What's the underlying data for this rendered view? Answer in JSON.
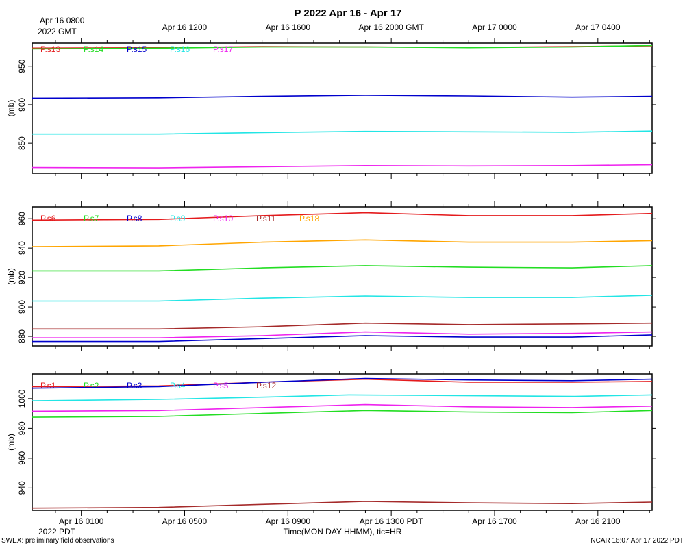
{
  "title": "P 2022 Apr 16 - Apr 17",
  "top_axis": {
    "first_label_line1": "Apr 16 0800",
    "first_label_line2": "2022 GMT",
    "labels": [
      "Apr 16 1200",
      "Apr 16 1600",
      "Apr 16 2000 GMT",
      "Apr 17 0000",
      "Apr 17 0400"
    ]
  },
  "bottom_axis": {
    "labels": [
      "Apr 16 0100",
      "Apr 16 0500",
      "Apr 16 0900",
      "Apr 16 1300 PDT",
      "Apr 16 1700",
      "Apr 16 2100"
    ],
    "year_label": "2022 PDT",
    "xlabel": "Time(MON DAY HHMM), tic=HR"
  },
  "footer": {
    "left": "SWEX: preliminary field observations",
    "right": "NCAR 16:07 Apr 17 2022 PDT"
  },
  "chart_data": [
    {
      "type": "line",
      "ylabel": "(mb)",
      "ylim": [
        811,
        980
      ],
      "yticks": [
        850,
        900,
        950
      ],
      "xlim_hours_pdt": [
        -0.9,
        23.1
      ],
      "series": [
        {
          "name": "P.s13",
          "color": "#e41a1c",
          "x": [
            -0.9,
            4,
            8,
            12,
            16,
            20,
            23.1
          ],
          "values": [
            973.5,
            974,
            975.5,
            975,
            974.5,
            975.5,
            976.5
          ]
        },
        {
          "name": "P.s14",
          "color": "#22dd22",
          "x": [
            -0.9,
            4,
            8,
            12,
            16,
            20,
            23.1
          ],
          "values": [
            972.5,
            973.5,
            975,
            975,
            974,
            975,
            977
          ]
        },
        {
          "name": "P.s15",
          "color": "#0000cc",
          "x": [
            -0.9,
            4,
            8,
            12,
            16,
            20,
            23.1
          ],
          "values": [
            908.5,
            909,
            911,
            912.5,
            911.5,
            910,
            911
          ]
        },
        {
          "name": "P.s16",
          "color": "#22e5e5",
          "x": [
            -0.9,
            4,
            8,
            12,
            16,
            20,
            23.1
          ],
          "values": [
            862,
            862,
            864,
            865.5,
            865,
            864.5,
            866
          ]
        },
        {
          "name": "P.s17",
          "color": "#ee22ee",
          "x": [
            -0.9,
            4,
            8,
            12,
            16,
            20,
            23.1
          ],
          "values": [
            818.5,
            818,
            819.5,
            821,
            820.5,
            821,
            822
          ]
        }
      ]
    },
    {
      "type": "line",
      "ylabel": "(mb)",
      "ylim": [
        873.5,
        968
      ],
      "yticks": [
        880,
        900,
        920,
        940,
        960
      ],
      "xlim_hours_pdt": [
        -0.9,
        23.1
      ],
      "series": [
        {
          "name": "P.s6",
          "color": "#e41a1c",
          "x": [
            -0.9,
            4,
            8,
            12,
            16,
            20,
            23.1
          ],
          "values": [
            959,
            959.5,
            962,
            964,
            962,
            962,
            963.5
          ]
        },
        {
          "name": "P.s7",
          "color": "#22dd22",
          "x": [
            -0.9,
            4,
            8,
            12,
            16,
            20,
            23.1
          ],
          "values": [
            924.5,
            924.5,
            926.5,
            928,
            927,
            926.5,
            928
          ]
        },
        {
          "name": "P.s8",
          "color": "#0000cc",
          "x": [
            -0.9,
            4,
            8,
            12,
            16,
            20,
            23.1
          ],
          "values": [
            876.5,
            876.5,
            878.5,
            880.5,
            879.5,
            879.5,
            881
          ]
        },
        {
          "name": "P.s9",
          "color": "#22e5e5",
          "x": [
            -0.9,
            4,
            8,
            12,
            16,
            20,
            23.1
          ],
          "values": [
            904,
            904,
            906,
            907.5,
            906.5,
            906.5,
            908
          ]
        },
        {
          "name": "P.s10",
          "color": "#ee22ee",
          "x": [
            -0.9,
            4,
            8,
            12,
            16,
            20,
            23.1
          ],
          "values": [
            879,
            879,
            880.5,
            883,
            881.5,
            882,
            883
          ]
        },
        {
          "name": "P.s11",
          "color": "#a52a2a",
          "x": [
            -0.9,
            4,
            8,
            12,
            16,
            20,
            23.1
          ],
          "values": [
            885,
            885,
            886.5,
            889,
            888,
            888.5,
            889
          ]
        },
        {
          "name": "P.s18",
          "color": "#ffa500",
          "x": [
            -0.9,
            4,
            8,
            12,
            16,
            20,
            23.1
          ],
          "values": [
            941,
            941.5,
            944,
            945.5,
            944,
            944,
            945
          ]
        }
      ]
    },
    {
      "type": "line",
      "ylabel": "(mb)",
      "ylim": [
        925,
        1016.5
      ],
      "yticks": [
        940,
        960,
        980,
        1000
      ],
      "xlim_hours_pdt": [
        -0.9,
        23.1
      ],
      "series": [
        {
          "name": "P.s1",
          "color": "#e41a1c",
          "x": [
            -0.9,
            4,
            8,
            12,
            16,
            20,
            23.1
          ],
          "values": [
            1008,
            1008.5,
            1011,
            1013,
            1011,
            1011,
            1011.5
          ]
        },
        {
          "name": "P.s2",
          "color": "#22dd22",
          "x": [
            -0.9,
            4,
            8,
            12,
            16,
            20,
            23.1
          ],
          "values": [
            987.5,
            988,
            990,
            992,
            991,
            990.5,
            992
          ]
        },
        {
          "name": "P.s3",
          "color": "#0000cc",
          "x": [
            -0.9,
            4,
            8,
            12,
            16,
            20,
            23.1
          ],
          "values": [
            1007,
            1008,
            1011,
            1013.5,
            1012.5,
            1012,
            1013
          ]
        },
        {
          "name": "P.s4",
          "color": "#22e5e5",
          "x": [
            -0.9,
            4,
            8,
            11.4,
            20.1,
            23.1
          ],
          "values": [
            998.5,
            999.5,
            1001,
            1002.5,
            1001.5,
            1002.5
          ]
        },
        {
          "name": "P.s5",
          "color": "#ee22ee",
          "x": [
            -0.9,
            4,
            8,
            12,
            16,
            20,
            23.1
          ],
          "values": [
            991.5,
            992,
            994,
            996,
            994.5,
            994,
            995
          ]
        },
        {
          "name": "P.s12",
          "color": "#a52a2a",
          "x": [
            -0.9,
            4,
            8,
            12,
            16,
            20,
            23.1
          ],
          "values": [
            926.5,
            927,
            929,
            931,
            930,
            929.5,
            930.5
          ]
        }
      ]
    }
  ]
}
